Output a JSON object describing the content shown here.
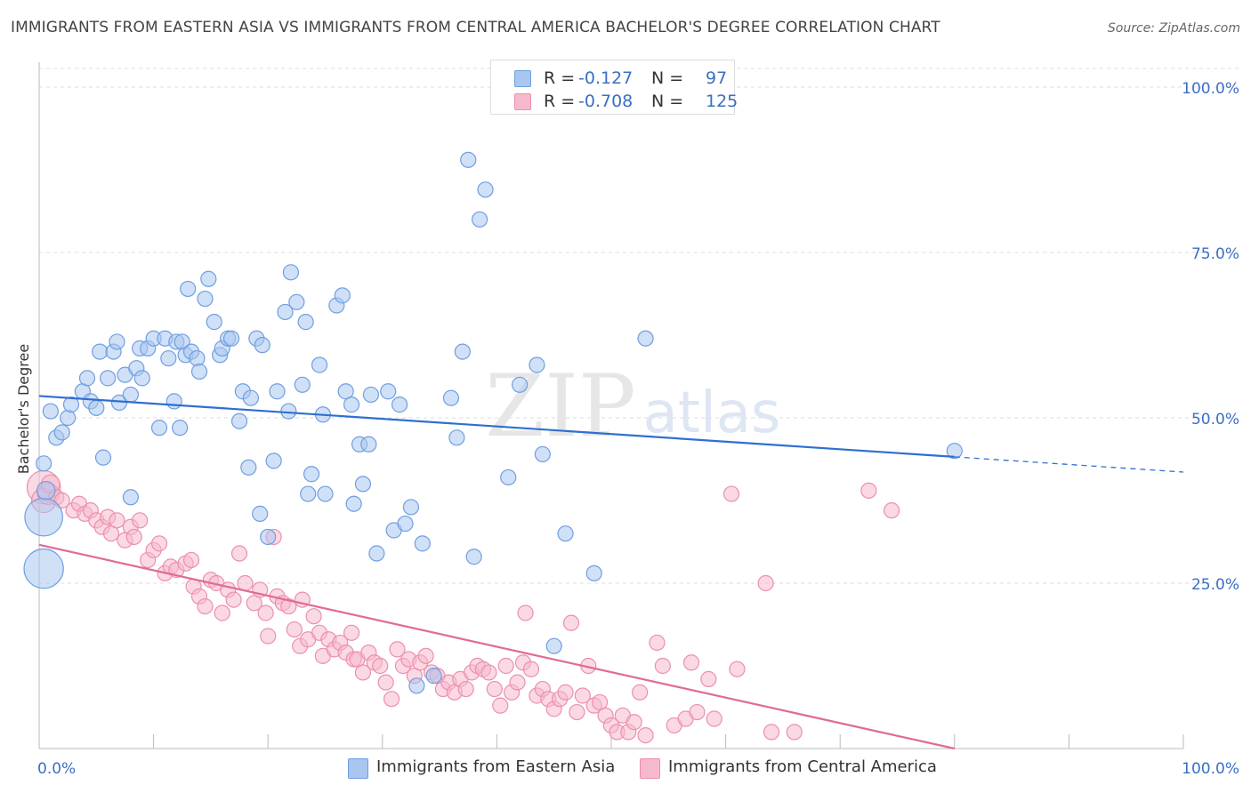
{
  "header": {
    "title": "IMMIGRANTS FROM EASTERN ASIA VS IMMIGRANTS FROM CENTRAL AMERICA BACHELOR'S DEGREE CORRELATION CHART",
    "source": "Source: ZipAtlas.com"
  },
  "watermark": {
    "zip": "ZIP",
    "atlas": "atlas"
  },
  "stats_legend": [
    {
      "r_label": "R =",
      "r_value": "-0.127",
      "n_label": "N =",
      "n_value": "97"
    },
    {
      "r_label": "R =",
      "r_value": "-0.708",
      "n_label": "N =",
      "n_value": "125"
    }
  ],
  "bottom_legend": [
    {
      "label": "Immigrants from Eastern Asia"
    },
    {
      "label": "Immigrants from Central America"
    }
  ],
  "colors": {
    "blue_fill": "#a9c6f0",
    "blue_stroke": "#6f9fe0",
    "blue_line": "#2f6fd0",
    "pink_fill": "#f6b9cc",
    "pink_stroke": "#ec8fae",
    "pink_line": "#e06a97",
    "tick_label": "#3a6fc4",
    "grid": "#dddddd"
  },
  "chart_data": {
    "type": "scatter",
    "title": "IMMIGRANTS FROM EASTERN ASIA VS IMMIGRANTS FROM CENTRAL AMERICA BACHELOR'S DEGREE CORRELATION CHART",
    "xlabel": "",
    "ylabel": "Bachelor's Degree",
    "xlim": [
      0,
      100
    ],
    "ylim": [
      0,
      100
    ],
    "x_tick_labels": [
      "0.0%",
      "100.0%"
    ],
    "y_ticks": [
      25,
      50,
      75,
      100
    ],
    "y_tick_labels": [
      "25.0%",
      "50.0%",
      "75.0%",
      "100.0%"
    ],
    "grid": true,
    "legend_position": "top-center",
    "series": [
      {
        "name": "Immigrants from Eastern Asia",
        "r": -0.127,
        "n": 97,
        "trend": {
          "x": [
            0,
            80
          ],
          "y": [
            53.3,
            44.1
          ],
          "dashed_to": [
            100,
            41.8
          ]
        },
        "points": [
          [
            0.4,
            43.1,
            1
          ],
          [
            0.4,
            35.0,
            2.5
          ],
          [
            0.4,
            27.2,
            2.6
          ],
          [
            0.6,
            39.0,
            1.2
          ],
          [
            1.5,
            47.0,
            1
          ],
          [
            2.0,
            47.8,
            1
          ],
          [
            2.5,
            50.0,
            1
          ],
          [
            2.8,
            52.0,
            1
          ],
          [
            3.8,
            54.0,
            1
          ],
          [
            4.2,
            56.0,
            1
          ],
          [
            4.5,
            52.5,
            1
          ],
          [
            5.0,
            51.5,
            1
          ],
          [
            5.3,
            60.0,
            1
          ],
          [
            5.6,
            44.0,
            1
          ],
          [
            6.0,
            56.0,
            1
          ],
          [
            6.5,
            60.0,
            1
          ],
          [
            6.8,
            61.5,
            1
          ],
          [
            7.0,
            52.3,
            1
          ],
          [
            7.5,
            56.5,
            1
          ],
          [
            8.0,
            53.5,
            1
          ],
          [
            8.5,
            57.5,
            1
          ],
          [
            8.8,
            60.5,
            1
          ],
          [
            9.0,
            56.0,
            1
          ],
          [
            9.5,
            60.5,
            1
          ],
          [
            10.0,
            62.0,
            1
          ],
          [
            10.5,
            48.5,
            1
          ],
          [
            11.0,
            62.0,
            1
          ],
          [
            11.3,
            59.0,
            1
          ],
          [
            11.8,
            52.5,
            1
          ],
          [
            12.0,
            61.5,
            1
          ],
          [
            12.3,
            48.5,
            1
          ],
          [
            12.5,
            61.5,
            1
          ],
          [
            12.8,
            59.5,
            1
          ],
          [
            13.0,
            69.5,
            1
          ],
          [
            13.3,
            60.0,
            1
          ],
          [
            13.8,
            59.0,
            1
          ],
          [
            14.0,
            57.0,
            1
          ],
          [
            14.5,
            68.0,
            1
          ],
          [
            14.8,
            71.0,
            1
          ],
          [
            15.3,
            64.5,
            1
          ],
          [
            15.8,
            59.5,
            1
          ],
          [
            16.0,
            60.5,
            1
          ],
          [
            16.5,
            62.0,
            1
          ],
          [
            16.8,
            62.0,
            1
          ],
          [
            17.5,
            49.5,
            1
          ],
          [
            17.8,
            54.0,
            1
          ],
          [
            18.3,
            42.5,
            1
          ],
          [
            18.5,
            53.0,
            1
          ],
          [
            19.0,
            62.0,
            1
          ],
          [
            19.3,
            35.5,
            1
          ],
          [
            19.5,
            61.0,
            1
          ],
          [
            20.0,
            32.0,
            1
          ],
          [
            20.5,
            43.5,
            1
          ],
          [
            20.8,
            54.0,
            1
          ],
          [
            21.5,
            66.0,
            1
          ],
          [
            21.8,
            51.0,
            1
          ],
          [
            22.0,
            72.0,
            1
          ],
          [
            22.5,
            67.5,
            1
          ],
          [
            23.0,
            55.0,
            1
          ],
          [
            23.3,
            64.5,
            1
          ],
          [
            23.5,
            38.5,
            1
          ],
          [
            23.8,
            41.5,
            1
          ],
          [
            24.5,
            58.0,
            1
          ],
          [
            24.8,
            50.5,
            1
          ],
          [
            25.0,
            38.5,
            1
          ],
          [
            26.0,
            67.0,
            1
          ],
          [
            26.5,
            68.5,
            1
          ],
          [
            26.8,
            54.0,
            1
          ],
          [
            27.3,
            52.0,
            1
          ],
          [
            27.5,
            37.0,
            1
          ],
          [
            28.0,
            46.0,
            1
          ],
          [
            28.3,
            40.0,
            1
          ],
          [
            28.8,
            46.0,
            1
          ],
          [
            29.0,
            53.5,
            1
          ],
          [
            29.5,
            29.5,
            1
          ],
          [
            30.5,
            54.0,
            1
          ],
          [
            31.0,
            33.0,
            1
          ],
          [
            31.5,
            52.0,
            1
          ],
          [
            32.0,
            34.0,
            1
          ],
          [
            32.5,
            36.5,
            1
          ],
          [
            33.0,
            9.5,
            1
          ],
          [
            34.5,
            11.0,
            1
          ],
          [
            36.0,
            53.0,
            1
          ],
          [
            36.5,
            47.0,
            1
          ],
          [
            37.0,
            60.0,
            1
          ],
          [
            37.5,
            89.0,
            1
          ],
          [
            38.0,
            29.0,
            1
          ],
          [
            38.5,
            80.0,
            1
          ],
          [
            39.0,
            84.5,
            1
          ],
          [
            41.0,
            41.0,
            1
          ],
          [
            42.0,
            55.0,
            1
          ],
          [
            43.5,
            58.0,
            1
          ],
          [
            44.0,
            44.5,
            1
          ],
          [
            45.0,
            15.5,
            1
          ],
          [
            46.0,
            32.5,
            1
          ],
          [
            48.5,
            26.5,
            1
          ],
          [
            53.0,
            62.0,
            1
          ],
          [
            80.0,
            45.0,
            1
          ],
          [
            1.0,
            51.0,
            1
          ],
          [
            8.0,
            38.0,
            1
          ],
          [
            33.5,
            31.0,
            1
          ]
        ]
      },
      {
        "name": "Immigrants from Central America",
        "r": -0.708,
        "n": 125,
        "trend": {
          "x": [
            0,
            80
          ],
          "y": [
            30.8,
            0.0
          ]
        },
        "points": [
          [
            0.4,
            39.5,
            2.2
          ],
          [
            0.4,
            37.5,
            1.6
          ],
          [
            0.8,
            38.5,
            1.4
          ],
          [
            1.0,
            40.0,
            1.2
          ],
          [
            1.5,
            38.0,
            1
          ],
          [
            2.0,
            37.5,
            1
          ],
          [
            3.0,
            36.0,
            1
          ],
          [
            3.5,
            37.0,
            1
          ],
          [
            4.0,
            35.5,
            1
          ],
          [
            4.5,
            36.0,
            1
          ],
          [
            5.0,
            34.5,
            1
          ],
          [
            5.5,
            33.5,
            1
          ],
          [
            6.0,
            35.0,
            1
          ],
          [
            6.3,
            32.5,
            1
          ],
          [
            6.8,
            34.5,
            1
          ],
          [
            7.5,
            31.5,
            1
          ],
          [
            8.0,
            33.5,
            1
          ],
          [
            8.3,
            32.0,
            1
          ],
          [
            8.8,
            34.5,
            1
          ],
          [
            9.5,
            28.5,
            1
          ],
          [
            10.0,
            30.0,
            1
          ],
          [
            10.5,
            31.0,
            1
          ],
          [
            11.0,
            26.5,
            1
          ],
          [
            11.5,
            27.5,
            1
          ],
          [
            12.0,
            27.0,
            1
          ],
          [
            12.8,
            28.0,
            1
          ],
          [
            13.3,
            28.5,
            1
          ],
          [
            13.5,
            24.5,
            1
          ],
          [
            14.0,
            23.0,
            1
          ],
          [
            14.5,
            21.5,
            1
          ],
          [
            15.0,
            25.5,
            1
          ],
          [
            15.5,
            25.0,
            1
          ],
          [
            16.0,
            20.5,
            1
          ],
          [
            16.5,
            24.0,
            1
          ],
          [
            17.0,
            22.5,
            1
          ],
          [
            17.5,
            29.5,
            1
          ],
          [
            18.0,
            25.0,
            1
          ],
          [
            18.8,
            22.0,
            1
          ],
          [
            19.3,
            24.0,
            1
          ],
          [
            19.8,
            20.5,
            1
          ],
          [
            20.0,
            17.0,
            1
          ],
          [
            20.5,
            32.0,
            1
          ],
          [
            20.8,
            23.0,
            1
          ],
          [
            21.3,
            22.0,
            1
          ],
          [
            21.8,
            21.5,
            1
          ],
          [
            22.3,
            18.0,
            1
          ],
          [
            22.8,
            15.5,
            1
          ],
          [
            23.0,
            22.5,
            1
          ],
          [
            23.5,
            16.5,
            1
          ],
          [
            24.0,
            20.0,
            1
          ],
          [
            24.5,
            17.5,
            1
          ],
          [
            24.8,
            14.0,
            1
          ],
          [
            25.3,
            16.5,
            1
          ],
          [
            25.8,
            15.0,
            1
          ],
          [
            26.3,
            16.0,
            1
          ],
          [
            26.8,
            14.5,
            1
          ],
          [
            27.3,
            17.5,
            1
          ],
          [
            27.5,
            13.5,
            1
          ],
          [
            27.8,
            13.5,
            1
          ],
          [
            28.3,
            11.5,
            1
          ],
          [
            28.8,
            14.5,
            1
          ],
          [
            29.3,
            13.0,
            1
          ],
          [
            29.8,
            12.5,
            1
          ],
          [
            30.3,
            10.0,
            1
          ],
          [
            30.8,
            7.5,
            1
          ],
          [
            31.3,
            15.0,
            1
          ],
          [
            31.8,
            12.5,
            1
          ],
          [
            32.3,
            13.5,
            1
          ],
          [
            32.8,
            11.0,
            1
          ],
          [
            33.3,
            13.0,
            1
          ],
          [
            33.8,
            14.0,
            1
          ],
          [
            34.3,
            11.5,
            1
          ],
          [
            34.8,
            11.0,
            1
          ],
          [
            35.3,
            9.0,
            1
          ],
          [
            35.8,
            10.0,
            1
          ],
          [
            36.3,
            8.5,
            1
          ],
          [
            36.8,
            10.5,
            1
          ],
          [
            37.3,
            9.0,
            1
          ],
          [
            37.8,
            11.5,
            1
          ],
          [
            38.3,
            12.5,
            1
          ],
          [
            38.8,
            12.0,
            1
          ],
          [
            39.3,
            11.5,
            1
          ],
          [
            39.8,
            9.0,
            1
          ],
          [
            40.3,
            6.5,
            1
          ],
          [
            40.8,
            12.5,
            1
          ],
          [
            41.3,
            8.5,
            1
          ],
          [
            41.8,
            10.0,
            1
          ],
          [
            42.3,
            13.0,
            1
          ],
          [
            42.5,
            20.5,
            1
          ],
          [
            43.0,
            12.0,
            1
          ],
          [
            43.5,
            8.0,
            1
          ],
          [
            44.0,
            9.0,
            1
          ],
          [
            44.5,
            7.5,
            1
          ],
          [
            45.0,
            6.0,
            1
          ],
          [
            45.5,
            7.5,
            1
          ],
          [
            46.0,
            8.5,
            1
          ],
          [
            46.5,
            19.0,
            1
          ],
          [
            47.0,
            5.5,
            1
          ],
          [
            47.5,
            8.0,
            1
          ],
          [
            48.0,
            12.5,
            1
          ],
          [
            48.5,
            6.5,
            1
          ],
          [
            49.0,
            7.0,
            1
          ],
          [
            49.5,
            5.0,
            1
          ],
          [
            50.0,
            3.5,
            1
          ],
          [
            50.5,
            2.5,
            1
          ],
          [
            51.0,
            5.0,
            1
          ],
          [
            51.5,
            2.5,
            1
          ],
          [
            52.0,
            4.0,
            1
          ],
          [
            52.5,
            8.5,
            1
          ],
          [
            53.0,
            2.0,
            1
          ],
          [
            54.0,
            16.0,
            1
          ],
          [
            54.5,
            12.5,
            1
          ],
          [
            55.5,
            3.5,
            1
          ],
          [
            56.5,
            4.5,
            1
          ],
          [
            57.0,
            13.0,
            1
          ],
          [
            57.5,
            5.5,
            1
          ],
          [
            58.5,
            10.5,
            1
          ],
          [
            59.0,
            4.5,
            1
          ],
          [
            60.5,
            38.5,
            1
          ],
          [
            61.0,
            12.0,
            1
          ],
          [
            63.5,
            25.0,
            1
          ],
          [
            64.0,
            2.5,
            1
          ],
          [
            66.0,
            2.5,
            1
          ],
          [
            72.5,
            39.0,
            1
          ],
          [
            74.5,
            36.0,
            1
          ]
        ]
      }
    ]
  }
}
